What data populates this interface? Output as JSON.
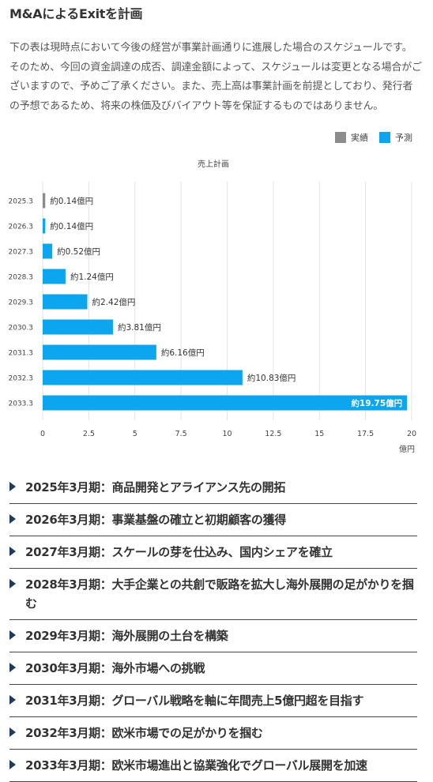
{
  "header": {
    "title": "M&AによるExitを計画"
  },
  "intro": {
    "text": "下の表は現時点において今後の経営が事業計画通りに進展した場合のスケジュールです。そのため、今回の資金調達の成否、調達金額によって、スケジュールは変更となる場合がございますので、予めご了承ください。また、売上高は事業計画を前提としており、発行者の予想であるため、将来の株価及びバイアウト等を保証するものではありません。"
  },
  "legend": {
    "actual": {
      "label": "実績",
      "color": "#8c8c8c"
    },
    "forecast": {
      "label": "予測",
      "color": "#0ea5ef"
    }
  },
  "chart_data": {
    "type": "bar",
    "orientation": "horizontal",
    "title": "売上計画",
    "xlabel": "億円",
    "ylabel": "",
    "xlim": [
      0,
      20
    ],
    "xticks": [
      "0",
      "2.5",
      "5",
      "7.5",
      "10",
      "12.5",
      "15",
      "17.5",
      "20"
    ],
    "grid": true,
    "legend_position": "top-right",
    "categories": [
      "2025.3",
      "2026.3",
      "2027.3",
      "2028.3",
      "2029.3",
      "2030.3",
      "2031.3",
      "2032.3",
      "2033.3"
    ],
    "values": [
      0.14,
      0.14,
      0.52,
      1.24,
      2.42,
      3.81,
      6.16,
      10.83,
      19.75
    ],
    "labels": [
      "約0.14億円",
      "約0.14億円",
      "約0.52億円",
      "約1.24億円",
      "約2.42億円",
      "約3.81億円",
      "約6.16億円",
      "約10.83億円",
      "約19.75億円"
    ],
    "kinds": [
      "actual",
      "forecast",
      "forecast",
      "forecast",
      "forecast",
      "forecast",
      "forecast",
      "forecast",
      "forecast"
    ]
  },
  "milestones": [
    "2025年3月期：商品開発とアライアンス先の開拓",
    "2026年3月期：事業基盤の確立と初期顧客の獲得",
    "2027年3月期：スケールの芽を仕込み、国内シェアを確立",
    "2028年3月期：大手企業との共創で販路を拡大し海外展開の足がかりを掴む",
    "2029年3月期：海外展開の土台を構築",
    "2030年3月期：海外市場への挑戦",
    "2031年3月期：グローバル戦略を軸に年間売上5億円超を目指す",
    "2032年3月期：欧米市場での足がかりを掴む",
    "2033年3月期：欧米市場進出と協業強化でグローバル展開を加速"
  ]
}
